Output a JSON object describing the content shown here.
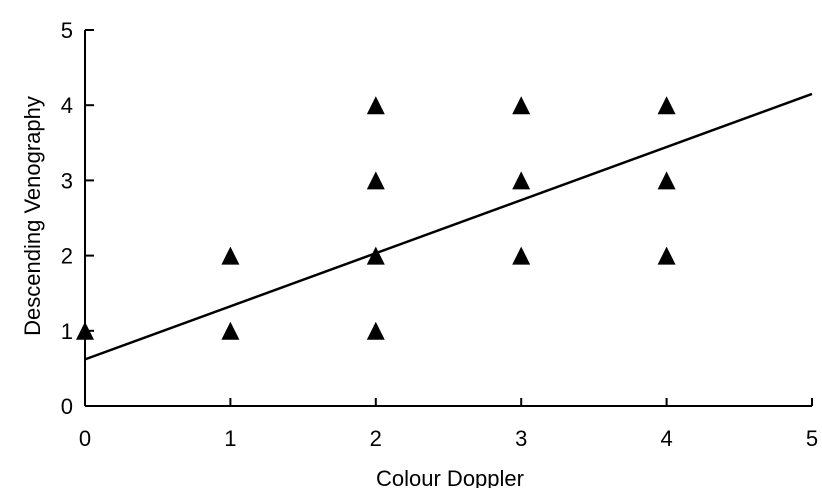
{
  "chart_data": {
    "type": "scatter",
    "xlabel": "Colour Doppler",
    "ylabel": "Descending Venography",
    "xlim": [
      0,
      5
    ],
    "ylim": [
      0,
      5
    ],
    "x_ticks": [
      "0",
      "1",
      "2",
      "3",
      "4",
      "5"
    ],
    "y_ticks": [
      "0",
      "1",
      "2",
      "3",
      "4",
      "5"
    ],
    "grid": false,
    "marker": "triangle",
    "points": [
      {
        "x": 0,
        "y": 1
      },
      {
        "x": 1,
        "y": 1
      },
      {
        "x": 1,
        "y": 2
      },
      {
        "x": 2,
        "y": 1
      },
      {
        "x": 2,
        "y": 2
      },
      {
        "x": 2,
        "y": 3
      },
      {
        "x": 2,
        "y": 4
      },
      {
        "x": 3,
        "y": 2
      },
      {
        "x": 3,
        "y": 3
      },
      {
        "x": 3,
        "y": 4
      },
      {
        "x": 4,
        "y": 2
      },
      {
        "x": 4,
        "y": 3
      },
      {
        "x": 4,
        "y": 4
      }
    ],
    "regression_line": {
      "x0": 0,
      "y0": 0.62,
      "x1": 5,
      "y1": 4.15
    }
  }
}
